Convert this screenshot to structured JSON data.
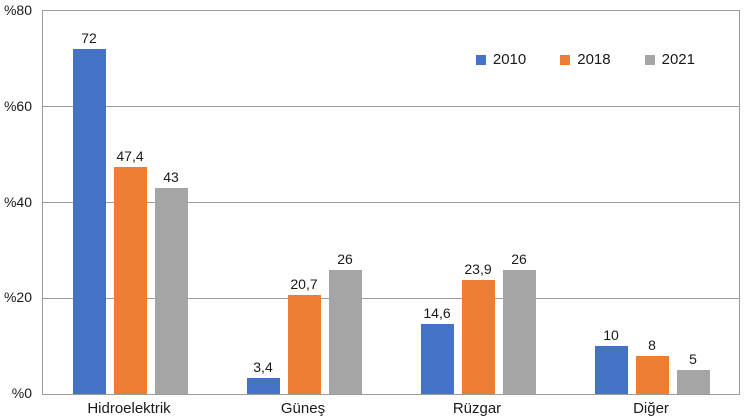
{
  "chart_data": {
    "type": "bar",
    "title": "",
    "xlabel": "",
    "ylabel": "",
    "categories": [
      "Hidroelektrik",
      "Güneş",
      "Rüzgar",
      "Diğer"
    ],
    "series": [
      {
        "name": "2010",
        "color": "#4472C4",
        "values": [
          72,
          3.4,
          14.6,
          10
        ],
        "labels": [
          "72",
          "3,4",
          "14,6",
          "10"
        ]
      },
      {
        "name": "2018",
        "color": "#ED7D31",
        "values": [
          47.4,
          20.7,
          23.9,
          8
        ],
        "labels": [
          "47,4",
          "20,7",
          "23,9",
          "8"
        ]
      },
      {
        "name": "2021",
        "color": "#A5A5A5",
        "values": [
          43,
          26,
          26,
          5
        ],
        "labels": [
          "43",
          "26",
          "26",
          "5"
        ]
      }
    ],
    "ylim": [
      0,
      80
    ],
    "yticks": [
      0,
      20,
      40,
      60,
      80
    ],
    "ytick_labels": [
      "%0",
      "%20",
      "%40",
      "%60",
      "%80"
    ],
    "grid": true,
    "legend_position": "top-right-inside",
    "colors": {
      "gridline": "#9b9b9b",
      "plot_border": "#9b9b9b",
      "text": "#1a1a1a",
      "background": "#ffffff"
    }
  }
}
